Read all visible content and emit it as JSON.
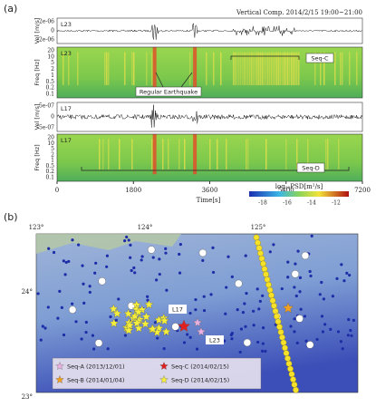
{
  "panel_a": {
    "label": "(a)",
    "header": "Vertical Comp. 2014/2/15 19:00~21:00",
    "tracks": [
      {
        "station": "L23",
        "y_label": "Vel [m/s]",
        "ticks": [
          "2e-06",
          "0",
          "-2e-06"
        ]
      },
      {
        "station": "L23",
        "y_label": "Freq [Hz]",
        "ticks": [
          "20",
          "10",
          "5",
          "2",
          "1",
          "0.5",
          "0.2",
          "0.1"
        ]
      },
      {
        "station": "L17",
        "y_label": "Vel [m/s]",
        "ticks": [
          "5e-07",
          "0",
          "-5e-07"
        ]
      },
      {
        "station": "L17",
        "y_label": "Freq [Hz]",
        "ticks": [
          "20",
          "10",
          "5",
          "2",
          "1",
          "0.5",
          "0.2",
          "0.1"
        ]
      }
    ],
    "annotations": {
      "earthquake": "Regular Earthquake",
      "seq_c": "Seq-C",
      "seq_d": "Seq-D"
    },
    "x_ticks": [
      0,
      1800,
      3600,
      5400,
      7200
    ],
    "x_label": "Time[s]",
    "colorbar": {
      "label": "log₁₀PSD[m²/s]",
      "ticks": [
        "-18",
        "-16",
        "-14",
        "-12"
      ]
    }
  },
  "panel_b": {
    "label": "(b)",
    "lon_ticks": [
      "123°",
      "124°",
      "125°"
    ],
    "lat_ticks": [
      "24°",
      "23°"
    ],
    "stations": [
      "L17",
      "L23"
    ],
    "legend": [
      "Seq-A (2013/12/01)",
      "Seq-B (2014/01/04)",
      "Seq-C (2014/02/15)",
      "Seq-D (2014/02/15)"
    ]
  }
}
